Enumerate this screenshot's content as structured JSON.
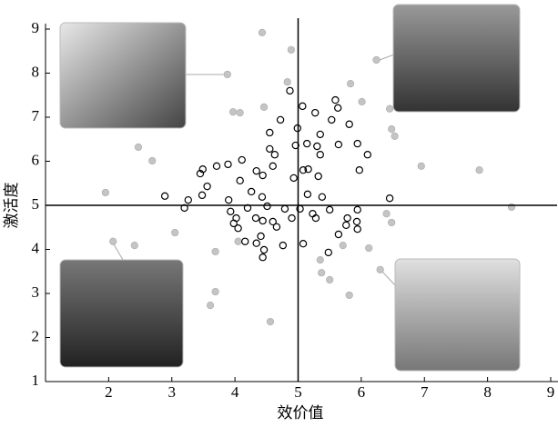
{
  "chart_data": {
    "type": "scatter",
    "x_label": "效价值",
    "y_label": "激活度",
    "xlim": [
      1,
      9
    ],
    "ylim": [
      1,
      9
    ],
    "xticks": [
      2,
      3,
      4,
      5,
      6,
      7,
      8,
      9
    ],
    "yticks": [
      1,
      2,
      3,
      4,
      5,
      6,
      7,
      8,
      9
    ],
    "reference_x": 5,
    "reference_y": 5,
    "series": [
      {
        "color": "#c4c4c4",
        "marker": "filled",
        "x": [
          3.88,
          4.43,
          4.89,
          4.83,
          6.24,
          5.83,
          3.97,
          4.08,
          4.46,
          6.01,
          2.47,
          2.69,
          1.95,
          6.45,
          6.48,
          6.53,
          6.95,
          7.87,
          8.38,
          6.4,
          6.48,
          2.07,
          2.41,
          3.05,
          3.69,
          4.05,
          5.35,
          5.37,
          5.5,
          5.71,
          6.12,
          6.3,
          3.69,
          3.61,
          5.81,
          4.56
        ],
        "values": [
          7.97,
          8.92,
          8.53,
          7.8,
          8.3,
          7.76,
          7.12,
          7.1,
          7.23,
          7.35,
          6.32,
          6.01,
          5.29,
          7.19,
          6.73,
          6.57,
          5.89,
          5.8,
          4.96,
          4.81,
          4.61,
          4.18,
          4.09,
          4.38,
          3.95,
          4.18,
          3.76,
          3.47,
          3.31,
          4.09,
          4.03,
          3.54,
          3.04,
          2.73,
          2.96,
          2.36
        ]
      },
      {
        "color": "#000000",
        "marker": "open",
        "x": [
          4.87,
          5.07,
          5.27,
          5.59,
          5.63,
          4.72,
          5.53,
          4.55,
          4.99,
          5.81,
          5.35,
          4.96,
          5.14,
          5.3,
          5.64,
          5.94,
          4.55,
          4.63,
          5.35,
          6.1,
          4.11,
          3.71,
          3.89,
          3.49,
          3.45,
          4.34,
          4.6,
          5.08,
          5.16,
          5.32,
          5.97,
          4.44,
          4.08,
          3.56,
          4.93,
          3.48,
          4.26,
          4.43,
          5.15,
          5.38,
          2.89,
          3.26,
          3.9,
          4.51,
          3.2,
          4.79,
          5.03,
          5.5,
          5.94,
          6.45,
          5.23,
          5.28,
          3.93,
          4.2,
          4.33,
          4.6,
          4.9,
          4.02,
          3.98,
          4.44,
          5.78,
          4.05,
          4.66,
          5.76,
          5.93,
          5.94,
          5.64,
          4.41,
          4.16,
          4.34,
          4.46,
          4.44,
          4.76,
          5.08,
          5.48
        ],
        "values": [
          7.6,
          7.25,
          7.1,
          7.39,
          7.21,
          6.94,
          6.94,
          6.65,
          6.75,
          6.84,
          6.61,
          6.36,
          6.4,
          6.34,
          6.38,
          6.4,
          6.28,
          6.15,
          6.15,
          6.15,
          6.03,
          5.89,
          5.93,
          5.82,
          5.72,
          5.78,
          5.89,
          5.8,
          5.82,
          5.66,
          5.8,
          5.68,
          5.56,
          5.43,
          5.62,
          5.23,
          5.31,
          5.19,
          5.25,
          5.19,
          5.21,
          5.12,
          5.12,
          4.98,
          4.94,
          4.92,
          4.92,
          4.9,
          4.9,
          5.16,
          4.81,
          4.71,
          4.86,
          4.94,
          4.71,
          4.63,
          4.71,
          4.71,
          4.59,
          4.65,
          4.71,
          4.48,
          4.51,
          4.55,
          4.63,
          4.46,
          4.34,
          4.3,
          4.18,
          4.14,
          3.99,
          3.82,
          4.09,
          4.13,
          3.93
        ]
      }
    ]
  }
}
